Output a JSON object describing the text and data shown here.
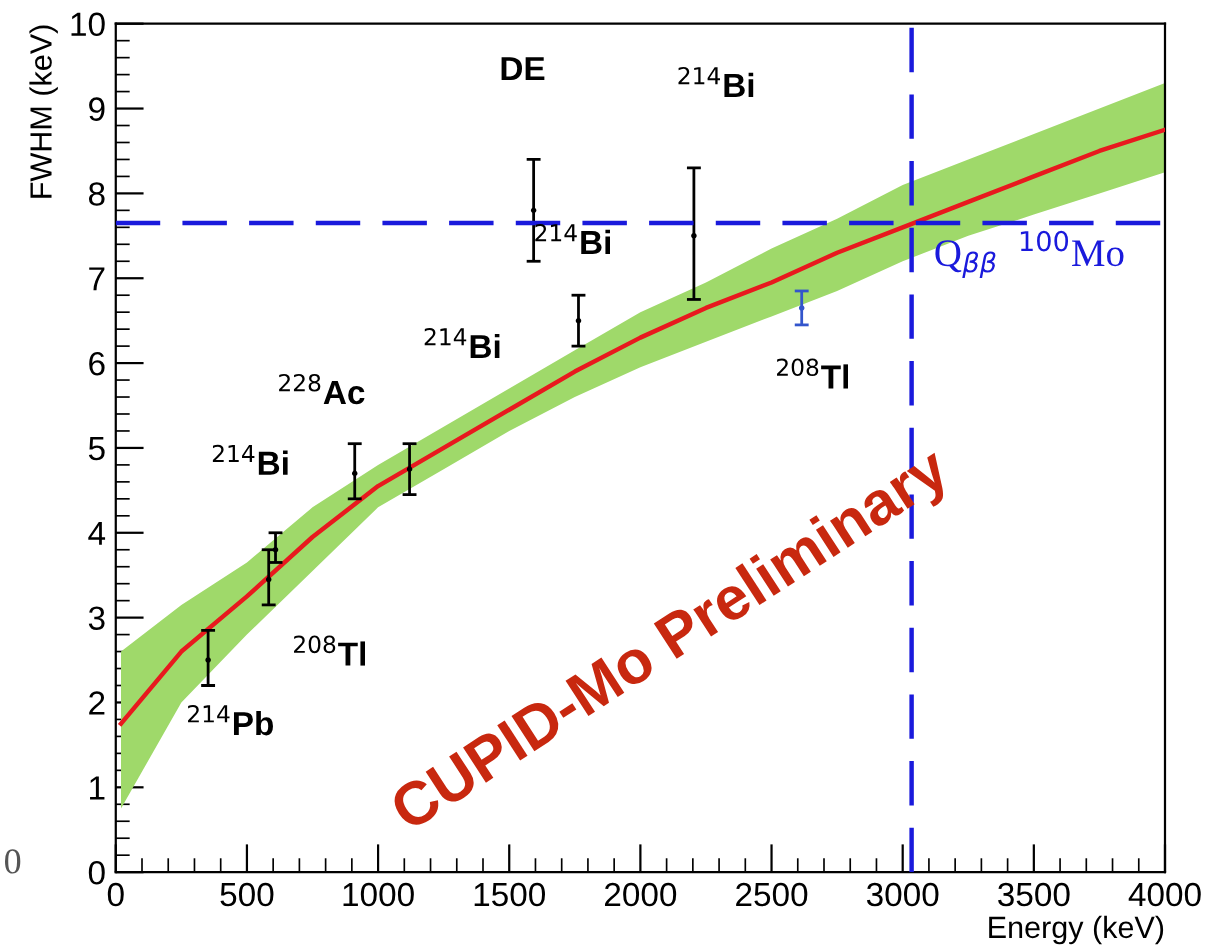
{
  "chart_data": {
    "type": "scatter",
    "xlabel": "Energy (keV)",
    "ylabel": "FWHM (keV)",
    "xlim": [
      0,
      4000
    ],
    "ylim": [
      0,
      10
    ],
    "xticks": [
      0,
      500,
      1000,
      1500,
      2000,
      2500,
      3000,
      3500,
      4000
    ],
    "yticks": [
      0,
      1,
      2,
      3,
      4,
      5,
      6,
      7,
      8,
      9,
      10
    ],
    "grid": false,
    "legend": false,
    "marker": "none",
    "series": [
      {
        "x": [
          352,
          583,
          609,
          911,
          1120,
          1593,
          1764,
          2204,
          2615
        ],
        "values": [
          2.5,
          3.45,
          3.8,
          4.7,
          4.75,
          7.8,
          6.5,
          7.5,
          6.65
        ],
        "errors": [
          [
            2.2,
            2.85
          ],
          [
            3.15,
            3.8
          ],
          [
            3.65,
            4.0
          ],
          [
            4.4,
            5.05
          ],
          [
            4.45,
            5.05
          ],
          [
            7.2,
            8.4
          ],
          [
            6.2,
            6.8
          ],
          [
            6.75,
            8.3
          ],
          [
            6.45,
            6.85
          ]
        ],
        "colors": [
          "#000000",
          "#000000",
          "#000000",
          "#000000",
          "#000000",
          "#000000",
          "#000000",
          "#000000",
          "#3355cc"
        ]
      },
      {
        "type": "line",
        "color": "#e8191e",
        "line_style": "solid",
        "x": [
          20,
          250,
          500,
          750,
          1000,
          1250,
          1500,
          1750,
          2000,
          2250,
          2500,
          2750,
          3000,
          3250,
          3500,
          3750,
          4000
        ],
        "values": [
          1.75,
          2.6,
          3.25,
          3.95,
          4.55,
          5.0,
          5.45,
          5.9,
          6.3,
          6.65,
          6.95,
          7.3,
          7.6,
          7.9,
          8.2,
          8.5,
          8.75
        ],
        "lower": [
          0.75,
          2.0,
          2.8,
          3.55,
          4.3,
          4.75,
          5.2,
          5.6,
          5.95,
          6.25,
          6.55,
          6.85,
          7.2,
          7.5,
          7.75,
          8.0,
          8.25
        ],
        "upper": [
          2.6,
          3.15,
          3.65,
          4.3,
          4.8,
          5.25,
          5.7,
          6.15,
          6.6,
          6.95,
          7.35,
          7.7,
          8.1,
          8.4,
          8.7,
          9.0,
          9.3
        ]
      }
    ],
    "ref_lines": [
      {
        "axis": "y",
        "value": 7.65,
        "color": "#1a1adc",
        "line_style": "dashed"
      },
      {
        "axis": "x",
        "value": 3034,
        "color": "#1a1adc",
        "line_style": "dashed",
        "label": "Q$_{ββ}$  $^{100}$Mo"
      }
    ],
    "annotations": [
      "$^{214}$Pb",
      "$^{208}$Tl",
      "$^{214}$Bi",
      "$^{228}$Ac",
      "$^{214}$Bi",
      "DE",
      "$^{214}$Bi",
      "$^{214}$Bi",
      "$^{208}$Tl",
      "CUPID-Mo Preliminary",
      "0"
    ]
  }
}
